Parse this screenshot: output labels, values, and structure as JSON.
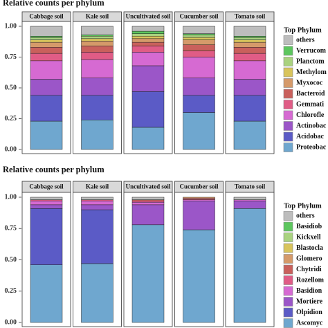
{
  "chart_data": [
    {
      "type": "bar",
      "stacked": true,
      "title": "Relative counts per phylum",
      "categories": [
        "Cabbage soil",
        "Kale soil",
        "Uncultivated soil",
        "Cucumber soil",
        "Tomato soil"
      ],
      "ylim": [
        0,
        1
      ],
      "yticks": [
        {
          "value": 0,
          "label": "0.00"
        },
        {
          "value": 0.25,
          "label": "0.25"
        },
        {
          "value": 0.5,
          "label": "0.50"
        },
        {
          "value": 0.75,
          "label": "0.75"
        },
        {
          "value": 1,
          "label": "1.00"
        }
      ],
      "legend_title": "Top Phylum",
      "series": [
        {
          "name": "Proteobac",
          "color": "#6fa7cf",
          "values": [
            0.23,
            0.24,
            0.18,
            0.3,
            0.23
          ]
        },
        {
          "name": "Acidobac",
          "color": "#5b5bc6",
          "values": [
            0.21,
            0.2,
            0.29,
            0.14,
            0.21
          ]
        },
        {
          "name": "Actinobac",
          "color": "#9b56c8",
          "values": [
            0.13,
            0.14,
            0.21,
            0.14,
            0.13
          ]
        },
        {
          "name": "Chlorofle",
          "color": "#d66ad2",
          "values": [
            0.15,
            0.15,
            0.11,
            0.17,
            0.15
          ]
        },
        {
          "name": "Gemmati",
          "color": "#e05c86",
          "values": [
            0.06,
            0.06,
            0.05,
            0.05,
            0.06
          ]
        },
        {
          "name": "Bacteroid",
          "color": "#c9605c",
          "values": [
            0.05,
            0.05,
            0.03,
            0.05,
            0.05
          ]
        },
        {
          "name": "Myxococ",
          "color": "#d59a6a",
          "values": [
            0.04,
            0.04,
            0.03,
            0.04,
            0.04
          ]
        },
        {
          "name": "Methylom",
          "color": "#d8c45c",
          "values": [
            0.02,
            0.02,
            0.02,
            0.02,
            0.02
          ]
        },
        {
          "name": "Planctom",
          "color": "#a9d27f",
          "values": [
            0.02,
            0.02,
            0.02,
            0.02,
            0.02
          ]
        },
        {
          "name": "Verrucom",
          "color": "#5cc65e",
          "values": [
            0.01,
            0.01,
            0.02,
            0.01,
            0.01
          ]
        },
        {
          "name": "others",
          "color": "#bdbdbd",
          "values": [
            0.08,
            0.07,
            0.04,
            0.06,
            0.08
          ]
        }
      ]
    },
    {
      "type": "bar",
      "stacked": true,
      "title": "Relative counts per phylum",
      "categories": [
        "Cabbage soil",
        "Kale soil",
        "Uncultivated soil",
        "Cucumber soil",
        "Tomato soil"
      ],
      "ylim": [
        0,
        1
      ],
      "yticks": [
        {
          "value": 0,
          "label": "0.00"
        },
        {
          "value": 0.25,
          "label": "0.25"
        },
        {
          "value": 0.5,
          "label": "0.50"
        },
        {
          "value": 0.75,
          "label": "0.75"
        },
        {
          "value": 1,
          "label": "1.00"
        }
      ],
      "legend_title": "Top Phylum",
      "series": [
        {
          "name": "Ascomyc",
          "color": "#6fa7cf",
          "values": [
            0.46,
            0.47,
            0.78,
            0.74,
            0.91
          ]
        },
        {
          "name": "Olpidion",
          "color": "#5b5bc6",
          "values": [
            0.45,
            0.43,
            0,
            0,
            0
          ]
        },
        {
          "name": "Mortiere",
          "color": "#9b56c8",
          "values": [
            0.03,
            0.04,
            0.16,
            0.23,
            0.06
          ]
        },
        {
          "name": "Basidion",
          "color": "#d66ad2",
          "values": [
            0.03,
            0.03,
            0.02,
            0.01,
            0.01
          ]
        },
        {
          "name": "Rozellom",
          "color": "#e05c86",
          "values": [
            0.01,
            0.01,
            0.01,
            0.01,
            0
          ]
        },
        {
          "name": "Chytridi",
          "color": "#c9605c",
          "values": [
            0,
            0,
            0.01,
            0,
            0
          ]
        },
        {
          "name": "Glomero",
          "color": "#d59a6a",
          "values": [
            0,
            0,
            0,
            0.01,
            0
          ]
        },
        {
          "name": "Blastocla",
          "color": "#d8c45c",
          "values": [
            0,
            0,
            0,
            0,
            0
          ]
        },
        {
          "name": "Kickxell",
          "color": "#a9d27f",
          "values": [
            0,
            0,
            0,
            0,
            0
          ]
        },
        {
          "name": "Basidiob",
          "color": "#5cc65e",
          "values": [
            0,
            0,
            0,
            0,
            0
          ]
        },
        {
          "name": "others",
          "color": "#bdbdbd",
          "values": [
            0.02,
            0.02,
            0.02,
            0,
            0.02
          ]
        }
      ]
    }
  ]
}
